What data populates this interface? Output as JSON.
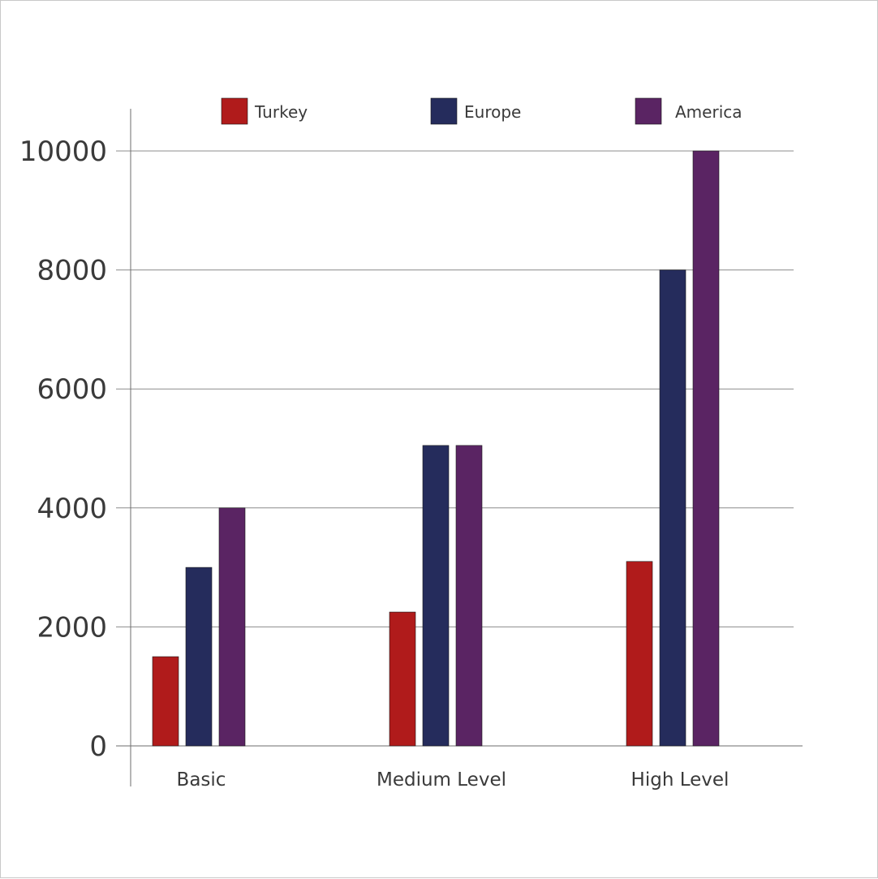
{
  "chart_data": {
    "type": "bar",
    "categories": [
      "Basic",
      "Medium Level",
      "High Level"
    ],
    "series": [
      {
        "name": "Turkey",
        "color": "#b01b1b",
        "values": [
          1500,
          2250,
          3100
        ]
      },
      {
        "name": "Europe",
        "color": "#252c5c",
        "values": [
          3000,
          5050,
          8000
        ]
      },
      {
        "name": "America",
        "color": "#5a2463",
        "values": [
          4000,
          5050,
          10000
        ]
      }
    ],
    "yticks": [
      "0",
      "2000",
      "4000",
      "6000",
      "8000",
      "10000"
    ],
    "ylim": [
      0,
      10000
    ],
    "grid": true,
    "legend_position": "top"
  }
}
